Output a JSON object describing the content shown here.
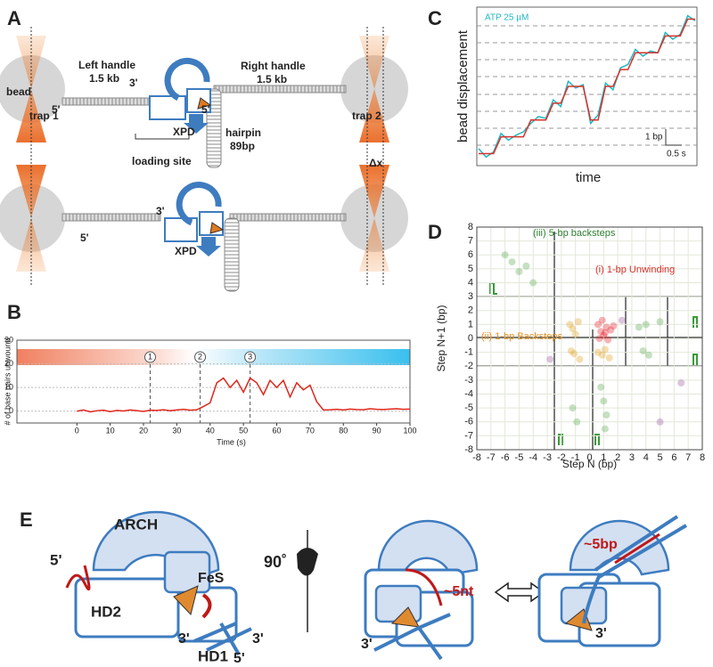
{
  "figure": {
    "panel_a": {
      "letter": "A",
      "left_handle": "Left handle",
      "left_size": "1.5 kb",
      "right_handle": "Right handle",
      "right_size": "1.5 kb",
      "bead": "bead",
      "trap1": "trap 1",
      "trap2": "trap 2",
      "three_prime": "3'",
      "five_prime_left": "5'",
      "five_prime_right": "5'",
      "xpd": "XPD",
      "hairpin": "hairpin",
      "hairpin_size": "89bp",
      "loading_site": "loading site",
      "delta_x": "Δx",
      "three_prime_2": "3'",
      "five_prime_2": "5'",
      "xpd_2": "XPD"
    },
    "panel_b": {
      "letter": "B"
    },
    "panel_c": {
      "letter": "C"
    },
    "panel_d": {
      "letter": "D"
    },
    "panel_e": {
      "letter": "E",
      "arch": "ARCH",
      "five_prime": "5'",
      "fes": "FeS",
      "hd2": "HD2",
      "hd1": "HD1",
      "three_prime_a": "3'",
      "three_prime_b": "3'",
      "five_prime_b": "5'",
      "rotation": "90˚",
      "nt": "~5nt",
      "three_prime_c": "3'",
      "bp": "~5bp",
      "three_prime_d": "3'"
    }
  },
  "chart_data": [
    {
      "type": "line",
      "y_label": "bead displacement",
      "x_label": "time",
      "annotation": "ATP 25 µM",
      "scale_y": "1 bp",
      "scale_x": "0.5 s",
      "ylim": [
        -0.5,
        8.5
      ],
      "series": [
        {
          "color": "#20b6c4",
          "values": [
            0.3,
            -0.2,
            0.1,
            1.2,
            0.8,
            1.1,
            1.3,
            1.8,
            2.2,
            2.1,
            3.2,
            2.8,
            4.3,
            3.9,
            4.1,
            1.8,
            2.3,
            4.2,
            3.8,
            5.1,
            5.3,
            6.2,
            5.8,
            6.1,
            6.0,
            7.2,
            6.8,
            7.1,
            8.2,
            7.9
          ]
        },
        {
          "color": "#d8322a",
          "values": [
            0,
            0,
            0,
            1,
            1,
            1,
            1,
            2,
            2,
            2,
            3,
            3,
            4,
            4,
            4,
            2,
            2,
            4,
            4,
            5,
            5,
            6,
            6,
            6,
            6,
            7,
            7,
            7,
            8,
            8
          ]
        }
      ]
    },
    {
      "type": "line",
      "y_label": "# of base pairs unwound",
      "x_label": "Time (s)",
      "xlim": [
        -18,
        100
      ],
      "ylim": [
        -5,
        30
      ],
      "xticks": [
        0,
        10,
        20,
        30,
        40,
        50,
        60,
        70,
        80,
        90,
        100
      ],
      "yticks": [
        0,
        10,
        20,
        30
      ],
      "markers": [
        "1",
        "2",
        "3"
      ],
      "marker_x": [
        22,
        37,
        52
      ],
      "x": [
        0,
        2,
        4,
        6,
        8,
        10,
        12,
        14,
        16,
        18,
        20,
        22,
        24,
        26,
        28,
        30,
        32,
        34,
        36,
        38,
        40,
        42,
        44,
        46,
        48,
        50,
        52,
        54,
        56,
        58,
        60,
        62,
        64,
        66,
        68,
        70,
        72,
        74,
        76,
        78,
        80,
        82,
        84,
        86,
        88,
        90,
        92,
        94,
        96,
        98,
        100
      ],
      "series": [
        {
          "color": "#e0261b",
          "values": [
            0,
            0.5,
            -0.3,
            0.2,
            0.4,
            -0.2,
            0.3,
            0.1,
            0.5,
            0.2,
            -0.1,
            0.4,
            0.3,
            0.6,
            0.2,
            0.5,
            0.8,
            0.4,
            0.6,
            2,
            3.5,
            12,
            14,
            10,
            13,
            8,
            14,
            12,
            7,
            13,
            10,
            13,
            6,
            12,
            9,
            11,
            4,
            0.5,
            0.6,
            0.8,
            0.5,
            0.9,
            0.7,
            0.6,
            1,
            0.8,
            0.7,
            0.9,
            1,
            0.8,
            0.9
          ]
        }
      ]
    },
    {
      "type": "scatter",
      "x_label": "Step N (bp)",
      "y_label": "Step N+1 (bp)",
      "xlim": [
        -8,
        8
      ],
      "ylim": [
        -8,
        8
      ],
      "xticks": [
        -8,
        -7,
        -6,
        -5,
        -4,
        -3,
        -2,
        -1,
        0,
        1,
        2,
        3,
        4,
        5,
        6,
        7,
        8
      ],
      "yticks": [
        -8,
        -7,
        -6,
        -5,
        -4,
        -3,
        -2,
        -1,
        0,
        1,
        2,
        3,
        4,
        5,
        6,
        7,
        8
      ],
      "grid": true,
      "annotations": [
        {
          "text": "(iii) 5-bp backsteps",
          "color": "#2e7d32"
        },
        {
          "text": "(i) 1-bp Unwinding",
          "color": "#d8322a"
        },
        {
          "text": "(ii) 1-bp Backsteps",
          "color": "#e09020"
        }
      ],
      "series": [
        {
          "color": "#e8202a",
          "x": [
            0.8,
            1.2,
            1.0,
            1.5,
            0.6,
            1.3,
            0.9,
            1.1,
            1.7,
            0.7
          ],
          "values": [
            0.5,
            0.8,
            0.2,
            0.6,
            1.0,
            -0.1,
            1.3,
            0.4,
            0.9,
            0.0
          ]
        },
        {
          "color": "#e0a020",
          "x": [
            -1.2,
            -0.8,
            -1.0,
            -1.4,
            0.9,
            1.1,
            1.4,
            0.6,
            -1.1,
            -0.7,
            -1.3
          ],
          "values": [
            0.7,
            1.2,
            0.3,
            1.0,
            -1.2,
            -0.8,
            -1.4,
            -1.0,
            -1.1,
            -1.5,
            -0.9
          ]
        },
        {
          "color": "#5aa84a",
          "x": [
            -5.5,
            -5,
            -4.5,
            -6,
            -4,
            4,
            3.5,
            5,
            4.2,
            3.8,
            1,
            1.2,
            0.8,
            1.1,
            -1.2,
            -0.9
          ],
          "values": [
            5.5,
            4.8,
            5.2,
            6,
            4,
            1,
            0.8,
            1.2,
            -1.2,
            -0.9,
            -4.5,
            -5.5,
            -3.5,
            -6.5,
            -5,
            -6
          ]
        },
        {
          "color": "#9a5a9a",
          "x": [
            -2.8,
            6.5,
            5,
            2.3
          ],
          "values": [
            -1.5,
            -3.2,
            -6,
            1.3
          ]
        }
      ]
    }
  ]
}
